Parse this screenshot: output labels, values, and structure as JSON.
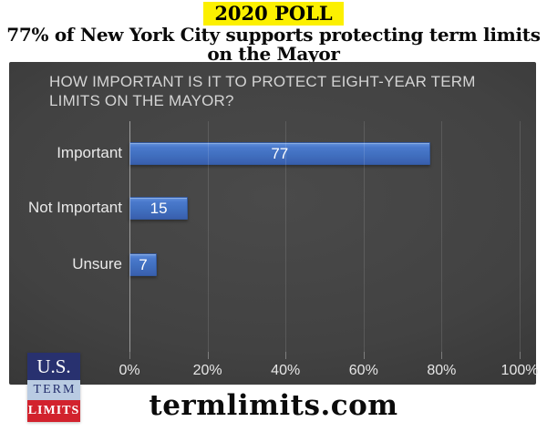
{
  "header": {
    "badge": "2020 POLL",
    "badge_bg": "#FCF000",
    "headline_line1": "77% of New York City supports protecting term limits",
    "headline_line2": "on the Mayor",
    "text_color": "#000000"
  },
  "chart_data": {
    "type": "bar",
    "orientation": "horizontal",
    "title": "HOW IMPORTANT IS IT TO PROTECT EIGHT-YEAR TERM LIMITS ON THE MAYOR?",
    "categories": [
      "Important",
      "Not Important",
      "Unsure"
    ],
    "values": [
      77,
      15,
      7
    ],
    "xlabel": "",
    "ylabel": "",
    "xlim": [
      0,
      100
    ],
    "xticks": [
      "0%",
      "20%",
      "40%",
      "60%",
      "80%",
      "100%"
    ],
    "xtick_values": [
      0,
      20,
      40,
      60,
      80,
      100
    ],
    "grid": true,
    "legend": false,
    "bar_color": "#4472C4",
    "background_color": "#3B3B3B",
    "value_label_color": "#FFFFFF",
    "axis_text_color": "#E6E6E6"
  },
  "footer": {
    "website": "termlimits.com",
    "logo": {
      "line1": "U.S.",
      "line2": "TERM",
      "line3": "LIMITS",
      "line1_bg": "#28316F",
      "line2_bg": "#B9CBE2",
      "line3_bg": "#D2222D"
    }
  }
}
